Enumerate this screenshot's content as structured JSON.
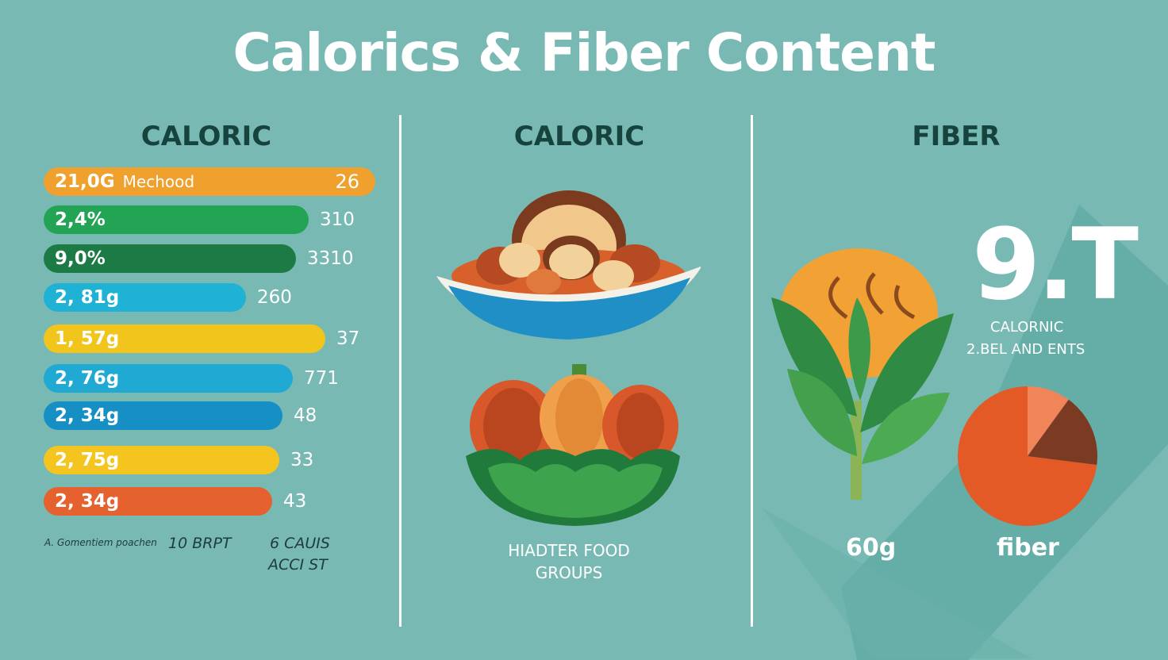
{
  "title": "Calorics & Fiber Content",
  "columns": {
    "left": {
      "heading": "CALORIC"
    },
    "middle": {
      "heading": "CALORIC",
      "caption_line1": "HIADTER FOOD",
      "caption_line2": "GROUPS"
    },
    "right": {
      "heading": "FIBER",
      "big_number": "9.T",
      "line1": "CALORNIC",
      "line2": "2.BEL AND ENTS",
      "left_stat": "60g",
      "right_stat": "fiber"
    }
  },
  "bars": [
    {
      "label": "21,0G",
      "sublabel": "Mechood",
      "value": "26",
      "color": "#f0a12d",
      "fraction": 1.0
    },
    {
      "label": "2,4%",
      "value": "310",
      "color": "#23a455",
      "fraction": 0.8
    },
    {
      "label": "9,0%",
      "value": "3310",
      "color": "#1c7a44",
      "fraction": 0.76
    },
    {
      "label": "2, 81g",
      "value": "260",
      "color": "#1fb2d4",
      "fraction": 0.61
    },
    {
      "label": "1, 57g",
      "value": "37",
      "color": "#f2c51d",
      "fraction": 0.85
    },
    {
      "label": "2, 76g",
      "value": "771",
      "color": "#20a9d3",
      "fraction": 0.75
    },
    {
      "label": "2, 34g",
      "value": "48",
      "color": "#1690c4",
      "fraction": 0.72
    },
    {
      "label": "2, 75g",
      "value": "33",
      "color": "#f5c51f",
      "fraction": 0.71
    },
    {
      "label": "2, 34g",
      "value": "43",
      "color": "#e5612d",
      "fraction": 0.69
    }
  ],
  "footnotes": {
    "a": "A. Gomentiem poachen",
    "b": "10 BRPT",
    "c_line1": "6 CAUIS",
    "c_line2": "ACCI ST"
  },
  "pie": {
    "slices": [
      {
        "fraction": 0.73,
        "color": "#e35a26"
      },
      {
        "fraction": 0.1,
        "color": "#f08559"
      },
      {
        "fraction": 0.17,
        "color": "#7b3a22"
      }
    ]
  },
  "colors": {
    "background": "#79b9b4",
    "heading": "#17433f",
    "shadow": "#5aa5a0"
  },
  "icons": [
    "food-bowl-icon",
    "vegetables-icon",
    "leafy-plant-icon"
  ]
}
